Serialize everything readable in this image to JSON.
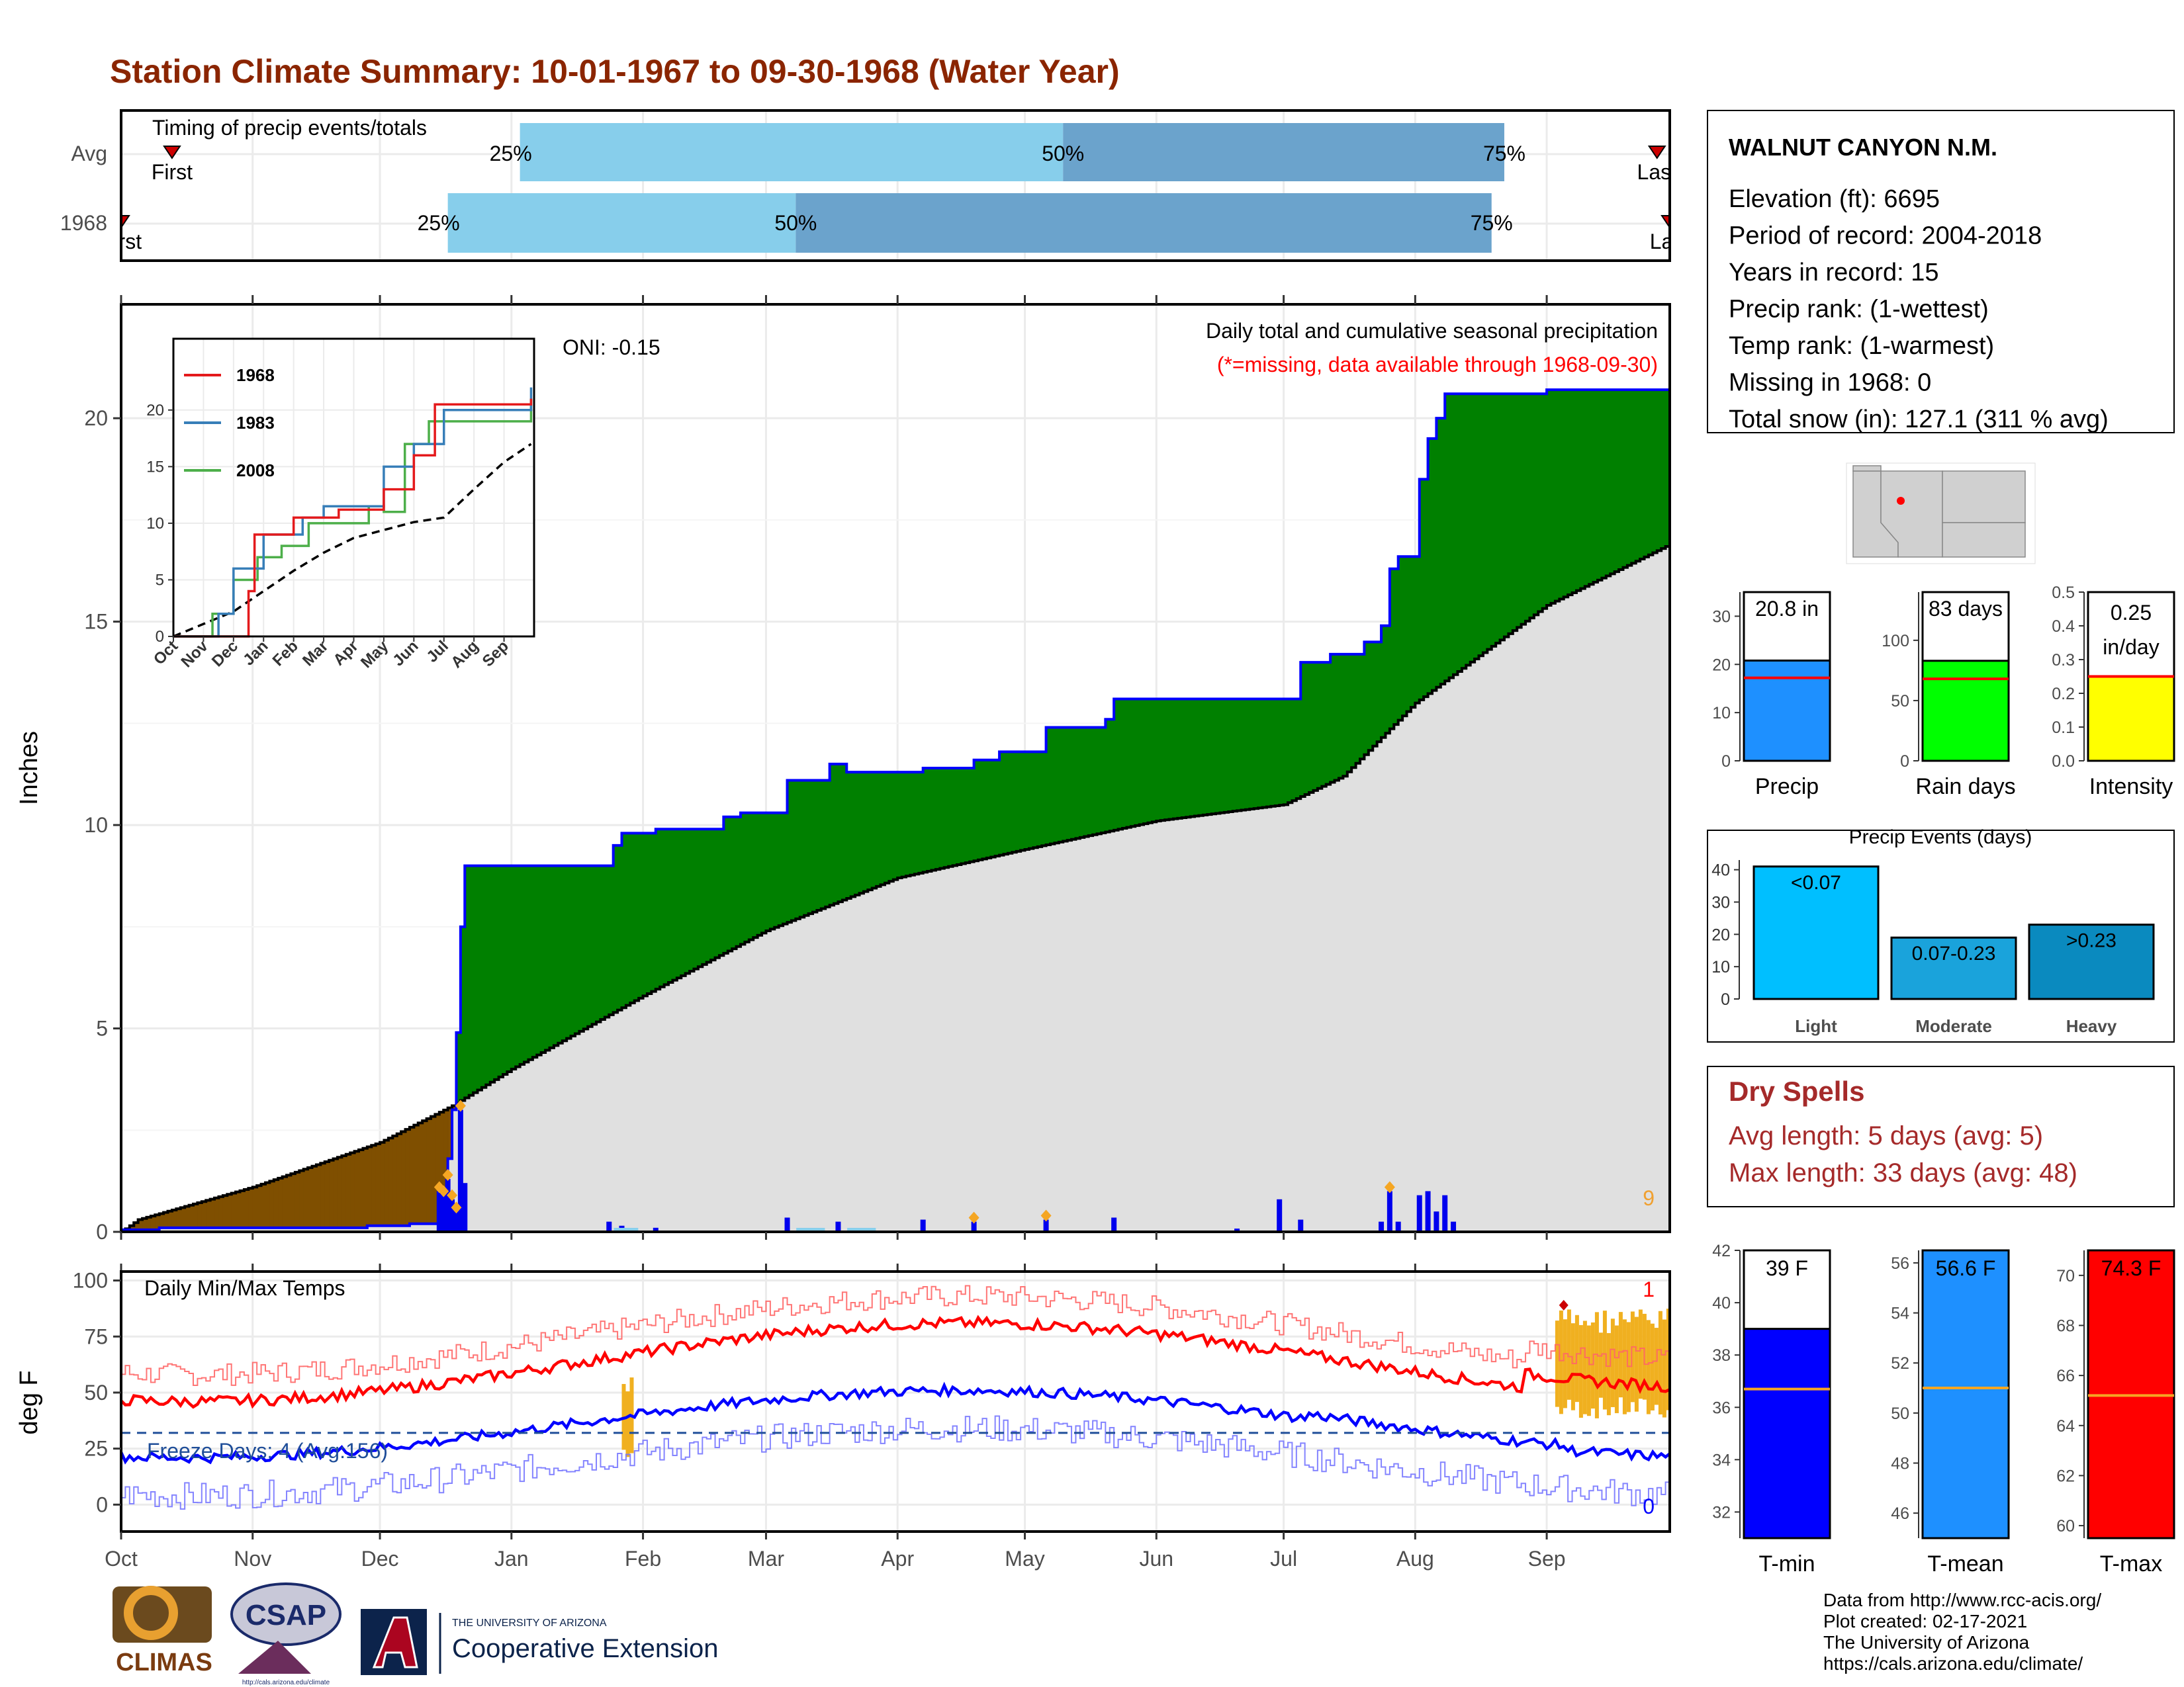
{
  "page_title": "Station Climate Summary: 10-01-1967 to 09-30-1968 (Water Year)",
  "colors": {
    "title": "#8B2500",
    "precip_above": "#008000",
    "precip_below": "#7F4F00",
    "normal_fill": "#E0E0E0",
    "cumulative_line": "#0000FF",
    "tmax": "#FF0000",
    "tmin": "#0000FF",
    "anomaly": "#F0B020",
    "light_blue": "#87CEEB",
    "mid_blue": "#6BA3CC",
    "dry_spells": "#A52A2A"
  },
  "timing": {
    "title": "Timing of precip events/totals",
    "rows": [
      "Avg",
      "1968"
    ],
    "first_label": "First",
    "last_label": "Last",
    "pct_labels": [
      "25%",
      "50%",
      "75%"
    ],
    "avg": {
      "q25": "1968-01-03",
      "q50": "1968-05-10",
      "q75": "1968-08-22",
      "first": "1967-10-13",
      "last": "1968-09-27"
    },
    "y1968": {
      "q25": "1967-12-17",
      "q50": "1968-03-08",
      "q75": "1968-08-19",
      "first": "1967-10-01",
      "last": "1968-09-30"
    }
  },
  "precip_panel": {
    "oni": "ONI: -0.15",
    "title": "Daily total and cumulative seasonal precipitation",
    "subtitle": "(*=missing, data available through 1968-09-30)",
    "ylabel": "Inches",
    "yticks": [
      "0",
      "5",
      "10",
      "15",
      "20"
    ],
    "corner_label": "9",
    "ylim": [
      0,
      22.8
    ]
  },
  "chart_data": {
    "type": "area",
    "x_domain": [
      "1967-10-01",
      "1968-09-30"
    ],
    "x_ticks": [
      "Oct",
      "Nov",
      "Dec",
      "Jan",
      "Feb",
      "Mar",
      "Apr",
      "May",
      "Jun",
      "Jul",
      "Aug",
      "Sep"
    ],
    "cumulative_1968": [
      [
        "1967-10-01",
        0.05
      ],
      [
        "1967-10-10",
        0.1
      ],
      [
        "1967-11-28",
        0.15
      ],
      [
        "1967-12-08",
        0.2
      ],
      [
        "1967-12-15",
        0.35
      ],
      [
        "1967-12-16",
        1.0
      ],
      [
        "1967-12-17",
        1.8
      ],
      [
        "1967-12-18",
        3.0
      ],
      [
        "1967-12-19",
        4.9
      ],
      [
        "1967-12-20",
        7.5
      ],
      [
        "1967-12-21",
        9.0
      ],
      [
        "1968-01-18",
        9.0
      ],
      [
        "1968-01-25",
        9.5
      ],
      [
        "1968-01-27",
        9.8
      ],
      [
        "1968-02-03",
        9.8
      ],
      [
        "1968-02-04",
        9.9
      ],
      [
        "1968-02-20",
        10.2
      ],
      [
        "1968-02-24",
        10.3
      ],
      [
        "1968-03-06",
        11.1
      ],
      [
        "1968-03-16",
        11.5
      ],
      [
        "1968-03-20",
        11.3
      ],
      [
        "1968-04-07",
        11.4
      ],
      [
        "1968-04-19",
        11.6
      ],
      [
        "1968-04-25",
        11.8
      ],
      [
        "1968-05-06",
        12.4
      ],
      [
        "1968-05-20",
        12.6
      ],
      [
        "1968-05-22",
        13.1
      ],
      [
        "1968-06-30",
        13.1
      ],
      [
        "1968-07-05",
        14.0
      ],
      [
        "1968-07-12",
        14.2
      ],
      [
        "1968-07-20",
        14.5
      ],
      [
        "1968-07-24",
        14.9
      ],
      [
        "1968-07-26",
        16.3
      ],
      [
        "1968-07-28",
        16.6
      ],
      [
        "1968-08-02",
        18.5
      ],
      [
        "1968-08-04",
        19.5
      ],
      [
        "1968-08-06",
        20.0
      ],
      [
        "1968-08-08",
        20.6
      ],
      [
        "1968-08-25",
        20.6
      ],
      [
        "1968-09-01",
        20.7
      ],
      [
        "1968-09-30",
        20.8
      ]
    ],
    "normal_cumulative": [
      [
        "1967-10-01",
        0.0
      ],
      [
        "1967-10-05",
        0.3
      ],
      [
        "1967-11-01",
        1.1
      ],
      [
        "1967-12-01",
        2.2
      ],
      [
        "1967-12-18",
        3.1
      ],
      [
        "1968-01-01",
        4.0
      ],
      [
        "1968-02-01",
        5.8
      ],
      [
        "1968-03-01",
        7.4
      ],
      [
        "1968-04-01",
        8.7
      ],
      [
        "1968-05-01",
        9.4
      ],
      [
        "1968-06-01",
        10.1
      ],
      [
        "1968-07-01",
        10.5
      ],
      [
        "1968-07-15",
        11.2
      ],
      [
        "1968-08-01",
        13.0
      ],
      [
        "1968-09-01",
        15.4
      ],
      [
        "1968-09-30",
        16.9
      ]
    ],
    "daily_precip": [
      [
        "1967-12-15",
        1.0
      ],
      [
        "1967-12-16",
        0.9
      ],
      [
        "1967-12-17",
        1.3
      ],
      [
        "1967-12-18",
        0.8
      ],
      [
        "1967-12-19",
        0.5
      ],
      [
        "1967-12-20",
        3.0
      ],
      [
        "1967-12-21",
        1.2
      ],
      [
        "1968-01-24",
        0.25
      ],
      [
        "1968-01-27",
        0.15
      ],
      [
        "1968-02-04",
        0.1
      ],
      [
        "1968-03-06",
        0.35
      ],
      [
        "1968-03-18",
        0.25
      ],
      [
        "1968-04-07",
        0.3
      ],
      [
        "1968-04-19",
        0.25
      ],
      [
        "1968-05-06",
        0.3
      ],
      [
        "1968-05-22",
        0.35
      ],
      [
        "1968-06-20",
        0.08
      ],
      [
        "1968-06-30",
        0.8
      ],
      [
        "1968-07-05",
        0.3
      ],
      [
        "1968-07-24",
        0.25
      ],
      [
        "1968-07-26",
        1.0
      ],
      [
        "1968-07-28",
        0.25
      ],
      [
        "1968-08-02",
        0.9
      ],
      [
        "1968-08-04",
        1.0
      ],
      [
        "1968-08-06",
        0.5
      ],
      [
        "1968-08-08",
        0.9
      ],
      [
        "1968-08-10",
        0.25
      ]
    ],
    "records": [
      "1967-12-15",
      "1967-12-16",
      "1967-12-17",
      "1967-12-18",
      "1967-12-19",
      "1967-12-20",
      "1968-04-19",
      "1968-05-06",
      "1968-07-26"
    ]
  },
  "inset": {
    "legend": [
      "1968",
      "1983",
      "2008"
    ],
    "colors": [
      "#E41A1C",
      "#377EB8",
      "#4DAF4A"
    ],
    "yticks": [
      "0",
      "5",
      "10",
      "15",
      "20"
    ],
    "xticks": [
      "Oct",
      "Nov",
      "Dec",
      "Jan",
      "Feb",
      "Mar",
      "Apr",
      "May",
      "Jun",
      "Jul",
      "Aug",
      "Sep"
    ],
    "series_1968": [
      [
        0,
        0
      ],
      [
        2.3,
        0
      ],
      [
        2.5,
        4
      ],
      [
        2.7,
        9
      ],
      [
        3.3,
        9
      ],
      [
        4.0,
        10.5
      ],
      [
        5.5,
        11.2
      ],
      [
        7.0,
        13
      ],
      [
        8.0,
        16
      ],
      [
        8.7,
        20.5
      ],
      [
        11.9,
        21
      ]
    ],
    "series_1983": [
      [
        0,
        0
      ],
      [
        1.5,
        2
      ],
      [
        2.0,
        6
      ],
      [
        3.0,
        9
      ],
      [
        4.3,
        10.5
      ],
      [
        5.0,
        11.5
      ],
      [
        7.0,
        15
      ],
      [
        8.0,
        17
      ],
      [
        9.0,
        20
      ],
      [
        11.9,
        22
      ]
    ],
    "series_2008": [
      [
        0,
        0
      ],
      [
        1.3,
        2
      ],
      [
        2.0,
        5
      ],
      [
        2.8,
        7
      ],
      [
        3.6,
        8
      ],
      [
        4.5,
        10
      ],
      [
        6.5,
        11.5
      ],
      [
        7.0,
        11
      ],
      [
        7.7,
        17
      ],
      [
        8.5,
        19
      ],
      [
        11.9,
        21
      ]
    ],
    "normal": [
      [
        0,
        0
      ],
      [
        1,
        1.1
      ],
      [
        2,
        2.2
      ],
      [
        3,
        4
      ],
      [
        4,
        5.8
      ],
      [
        5,
        7.4
      ],
      [
        6,
        8.7
      ],
      [
        7,
        9.4
      ],
      [
        8,
        10.1
      ],
      [
        9,
        10.5
      ],
      [
        10,
        13
      ],
      [
        11,
        15.4
      ],
      [
        11.9,
        17
      ]
    ]
  },
  "temp_panel": {
    "title": "Daily Min/Max Temps",
    "ylabel": "deg F",
    "yticks": [
      "0",
      "25",
      "50",
      "75",
      "100"
    ],
    "freeze_label": "Freeze Days: 4 (Avg:156)",
    "max_records_label": "1",
    "min_records_label": "0",
    "freeze_line": 32,
    "ylim": [
      -12,
      104
    ]
  },
  "station": {
    "name": "WALNUT CANYON N.M.",
    "lines": [
      "Elevation (ft): 6695",
      "Period of record: 2004-2018",
      "Years in record: 15",
      "Precip rank:  (1-wettest)",
      "Temp rank:  (1-warmest)",
      "Missing in 1968: 0",
      "Total snow (in): 127.1 (311 % avg)"
    ]
  },
  "summary_bars": [
    {
      "label": "Precip",
      "value_text": "20.8 in",
      "value": 20.8,
      "avg": 17.2,
      "ymax": 35,
      "ticks": [
        "0",
        "10",
        "20",
        "30"
      ],
      "tickvals": [
        0,
        10,
        20,
        30
      ],
      "color": "#1E90FF"
    },
    {
      "label": "Rain days",
      "value_text": "83 days",
      "value": 83,
      "avg": 68,
      "ymax": 140,
      "ticks": [
        "0",
        "50",
        "100"
      ],
      "tickvals": [
        0,
        50,
        100
      ],
      "color": "#00FF00"
    },
    {
      "label": "Intensity",
      "value_text": "0.25 in/day",
      "value_lines": [
        "0.25",
        "in/day"
      ],
      "value": 0.25,
      "avg": 0.25,
      "ymax": 0.5,
      "ticks": [
        "0.0",
        "0.1",
        "0.2",
        "0.3",
        "0.4",
        "0.5"
      ],
      "tickvals": [
        0,
        0.1,
        0.2,
        0.3,
        0.4,
        0.5
      ],
      "color": "#FFFF00"
    }
  ],
  "events": {
    "title": "Precip Events (days)",
    "ticks": [
      "0",
      "10",
      "20",
      "30",
      "40"
    ],
    "ymax": 43,
    "bars": [
      {
        "category": "Light",
        "label": "<0.07",
        "value": 41,
        "color": "#00BFFF"
      },
      {
        "category": "Moderate",
        "label": "0.07-0.23",
        "value": 19,
        "color": "#1AA3DB"
      },
      {
        "category": "Heavy",
        "label": ">0.23",
        "value": 23,
        "color": "#0A8ABF"
      }
    ]
  },
  "dry_spells": {
    "title": "Dry Spells",
    "avg": "Avg length: 5 days (avg: 5)",
    "max": "Max length: 33 days (avg: 48)"
  },
  "temp_bars": [
    {
      "label": "T-min",
      "value_text": "39 F",
      "value": 39.0,
      "avg": 36.7,
      "ymin": 31,
      "ymax": 42,
      "ticks": [
        "32",
        "34",
        "36",
        "38",
        "40",
        "42"
      ],
      "tickvals": [
        32,
        34,
        36,
        38,
        40,
        42
      ],
      "color": "#0000FF"
    },
    {
      "label": "T-mean",
      "value_text": "56.6 F",
      "value": 56.6,
      "avg": 51.0,
      "ymin": 45,
      "ymax": 56.5,
      "ticks": [
        "46",
        "48",
        "50",
        "52",
        "54",
        "56"
      ],
      "tickvals": [
        46,
        48,
        50,
        52,
        54,
        56
      ],
      "color": "#1E90FF"
    },
    {
      "label": "T-max",
      "value_text": "74.3 F",
      "value": 74.3,
      "avg": 65.2,
      "ymin": 59.5,
      "ymax": 71,
      "ticks": [
        "60",
        "62",
        "64",
        "66",
        "68",
        "70"
      ],
      "tickvals": [
        60,
        62,
        64,
        66,
        68,
        70
      ],
      "color": "#FF0000"
    }
  ],
  "credits": [
    "Data from http://www.rcc-acis.org/",
    "Plot created: 02-17-2021",
    "The University of Arizona",
    "https://cals.arizona.edu/climate/"
  ],
  "logos": {
    "climas": "CLIMAS",
    "csap": "CSAP",
    "csap_url": "http://cals.arizona.edu/climate",
    "ua_top": "THE UNIVERSITY OF ARIZONA",
    "ua_main": "Cooperative Extension"
  }
}
